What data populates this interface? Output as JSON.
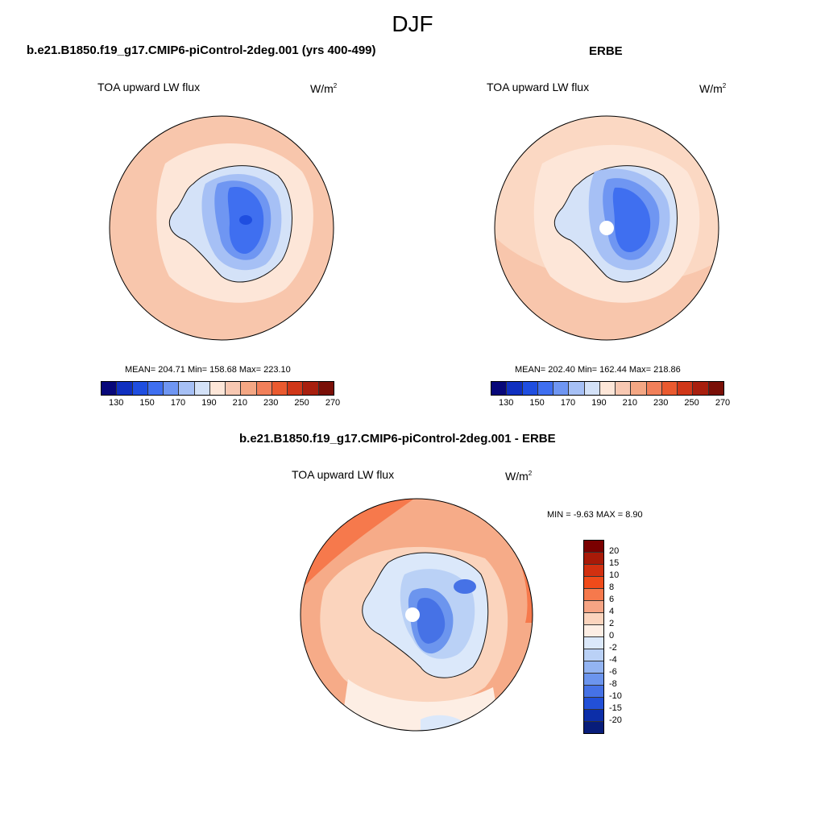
{
  "figure": {
    "season": "DJF"
  },
  "panels": [
    {
      "title": "b.e21.B1850.f19_g17.CMIP6-piControl-2deg.001 (yrs 400-499)",
      "variable": "TOA upward LW flux",
      "unit_base": "W/m",
      "unit_exp": "2",
      "stats": "MEAN= 204.71  Min= 158.68  Max= 223.10",
      "colorbar_labels": [
        "130",
        "150",
        "170",
        "190",
        "210",
        "230",
        "250",
        "270"
      ]
    },
    {
      "title": "ERBE",
      "variable": "TOA upward LW flux",
      "unit_base": "W/m",
      "unit_exp": "2",
      "stats": "MEAN= 202.40  Min= 162.44  Max= 218.86",
      "colorbar_labels": [
        "130",
        "150",
        "170",
        "190",
        "210",
        "230",
        "250",
        "270"
      ]
    },
    {
      "title": "b.e21.B1850.f19_g17.CMIP6-piControl-2deg.001 - ERBE",
      "variable": "TOA upward LW flux",
      "unit_base": "W/m",
      "unit_exp": "2",
      "stats": "MIN =  -9.63 MAX =   8.90",
      "colorbar_labels": [
        "20",
        "15",
        "10",
        "8",
        "6",
        "4",
        "2",
        "0",
        "-2",
        "-4",
        "-6",
        "-8",
        "-10",
        "-15",
        "-20"
      ]
    }
  ],
  "colors": {
    "abs_scale": [
      "#08087a",
      "#1030c0",
      "#1f4ee0",
      "#3f6ff0",
      "#6f96f2",
      "#a6c0f5",
      "#d4e2f8",
      "#fde6d8",
      "#f8c8b2",
      "#f4a784",
      "#f2805a",
      "#ea5a2f",
      "#d03718",
      "#a81f0e",
      "#7a0f07"
    ],
    "diff_scale": [
      "#7a0000",
      "#a81a08",
      "#d23010",
      "#f04b1a",
      "#f6794c",
      "#f6a484",
      "#fbd4bd",
      "#fdeee4",
      "#dbe8fa",
      "#bad1f6",
      "#93b4f2",
      "#6c95ee",
      "#4672e6",
      "#2250d8",
      "#0c2ea8",
      "#081d7a"
    ],
    "ocean_ctrl": "#f8c6ac",
    "ocean_erbe": "#fbd8c3",
    "diff_ocean": "#f6ab88",
    "coast": "#111111"
  }
}
